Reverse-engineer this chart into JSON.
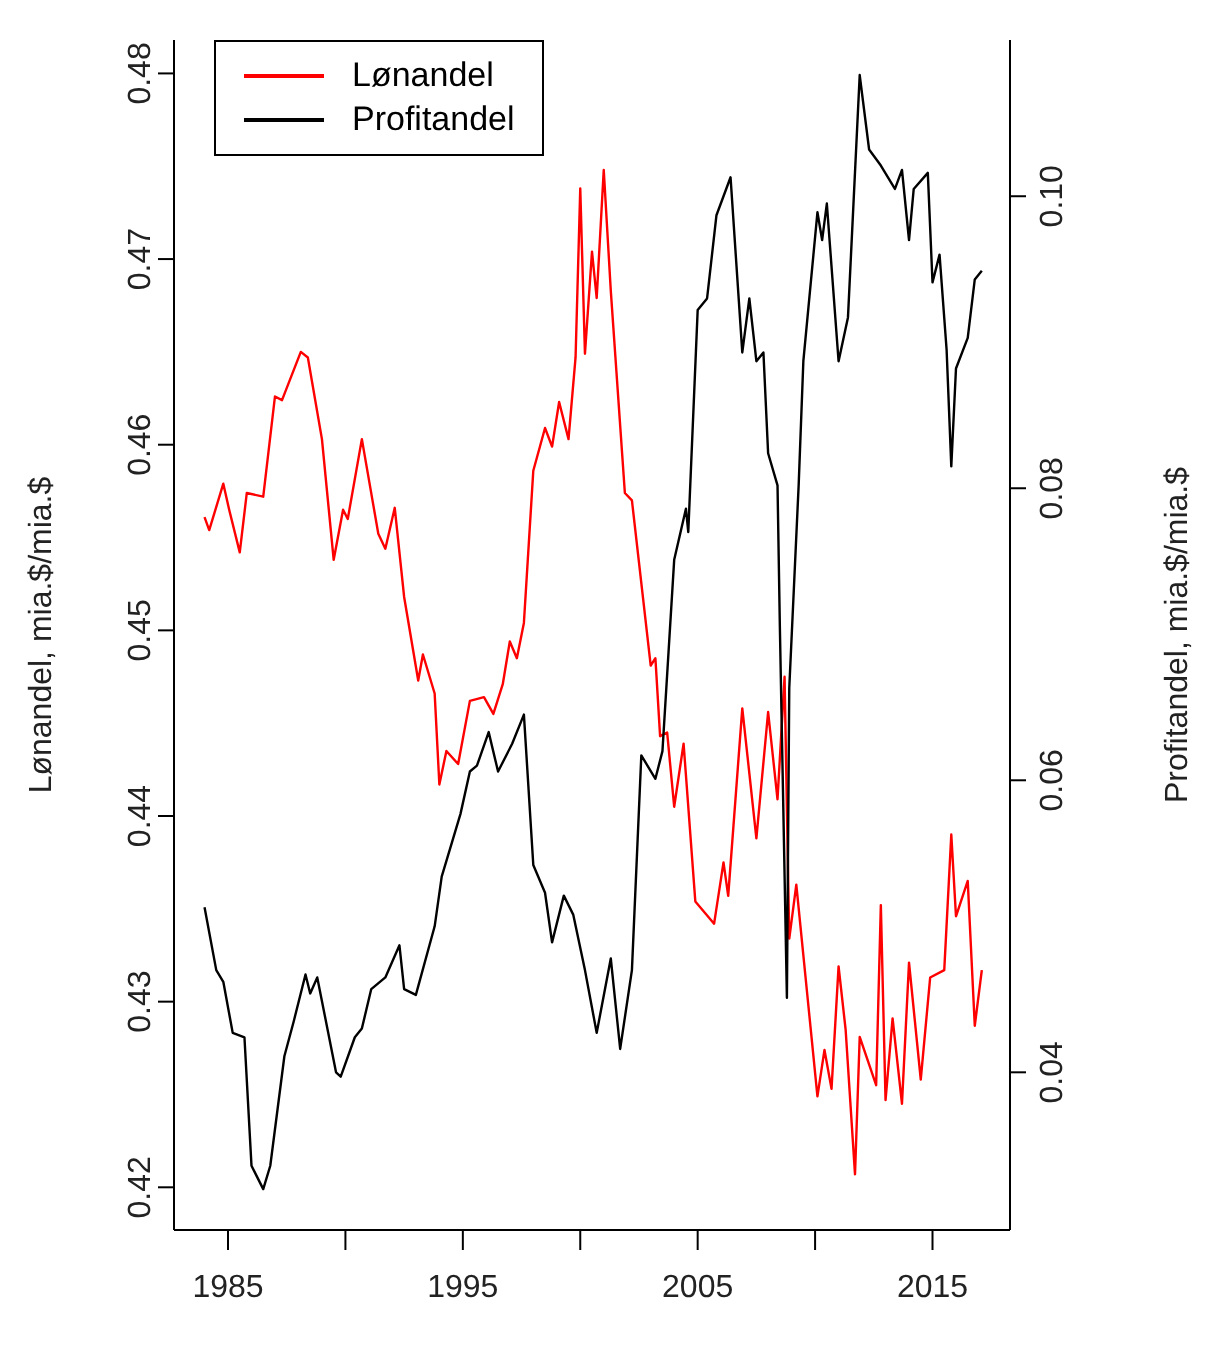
{
  "chart_data": {
    "type": "line",
    "ylabel": "Lønandel, mia.$/mia.$",
    "y2label": "Profitandel, mia.$/mia.$",
    "legend": "top left",
    "xlim": [
      1982.7,
      2018.3
    ],
    "xticks": [
      1985,
      {
        "value": 1990,
        "label": null
      },
      1995,
      {
        "value": 2000,
        "label": null
      },
      2005,
      {
        "value": 2010,
        "label": null
      },
      2015
    ],
    "ylim": [
      0.4177,
      0.4818
    ],
    "yticks": [
      0.42,
      0.43,
      0.44,
      0.45,
      0.46,
      0.47,
      0.48
    ],
    "y2lim": [
      0.0292,
      0.1107
    ],
    "y2ticks": [
      0.04,
      0.06,
      0.08,
      {
        "value": 0.1,
        "label": "0.10"
      }
    ],
    "series": [
      {
        "name": "Lønandel",
        "color": "#ff0000",
        "x": [
          1984.0,
          1984.2,
          1984.8,
          1985.05,
          1985.5,
          1985.8,
          1986.5,
          1987.0,
          1987.3,
          1988.1,
          1988.4,
          1989.0,
          1989.5,
          1989.9,
          1990.1,
          1990.7,
          1991.4,
          1991.7,
          1992.1,
          1992.5,
          1993.1,
          1993.3,
          1993.8,
          1994.0,
          1994.3,
          1994.8,
          1995.3,
          1995.9,
          1996.3,
          1996.7,
          1997.0,
          1997.3,
          1997.6,
          1998.0,
          1998.5,
          1998.8,
          1999.1,
          1999.5,
          1999.8,
          2000.0,
          2000.2,
          2000.5,
          2000.7,
          2001.0,
          2001.3,
          2001.9,
          2002.2,
          2003.0,
          2003.2,
          2003.4,
          2003.7,
          2004.0,
          2004.4,
          2004.9,
          2005.7,
          2006.1,
          2006.3,
          2006.9,
          2007.5,
          2008.0,
          2008.4,
          2008.7,
          2008.9,
          2009.2,
          2010.1,
          2010.4,
          2010.7,
          2011.0,
          2011.3,
          2011.7,
          2011.9,
          2012.6,
          2012.8,
          2013.0,
          2013.3,
          2013.7,
          2014.0,
          2014.5,
          2014.9,
          2015.5,
          2015.8,
          2016.0,
          2016.5,
          2016.8,
          2017.1
        ],
        "values": [
          0.4561,
          0.4554,
          0.4579,
          0.4565,
          0.4542,
          0.4574,
          0.4572,
          0.4626,
          0.4624,
          0.465,
          0.4647,
          0.4603,
          0.4538,
          0.4565,
          0.456,
          0.4603,
          0.4552,
          0.4544,
          0.4566,
          0.4518,
          0.4473,
          0.4487,
          0.4466,
          0.4417,
          0.4435,
          0.4428,
          0.4462,
          0.4464,
          0.4455,
          0.4471,
          0.4494,
          0.4485,
          0.4504,
          0.4586,
          0.4609,
          0.4599,
          0.4623,
          0.4603,
          0.4647,
          0.4738,
          0.4649,
          0.4704,
          0.4679,
          0.4748,
          0.4683,
          0.4574,
          0.457,
          0.4481,
          0.4485,
          0.4443,
          0.4445,
          0.4405,
          0.4439,
          0.4354,
          0.4342,
          0.4375,
          0.4357,
          0.4458,
          0.4388,
          0.4456,
          0.4409,
          0.4475,
          0.4334,
          0.4363,
          0.4249,
          0.4274,
          0.4253,
          0.4319,
          0.4285,
          0.4207,
          0.4281,
          0.4255,
          0.4352,
          0.4247,
          0.4291,
          0.4245,
          0.4321,
          0.4258,
          0.4313,
          0.4317,
          0.439,
          0.4346,
          0.4365,
          0.4287,
          0.4317
        ]
      },
      {
        "name": "Profitandel",
        "color": "#000000",
        "axis": "y2",
        "x": [
          1984.0,
          1984.5,
          1984.8,
          1985.2,
          1985.7,
          1986.0,
          1986.5,
          1986.8,
          1987.4,
          1987.8,
          1988.3,
          1988.5,
          1988.8,
          1989.6,
          1989.8,
          1990.4,
          1990.7,
          1991.1,
          1991.7,
          1992.3,
          1992.5,
          1993.0,
          1993.8,
          1994.1,
          1994.9,
          1995.3,
          1995.6,
          1996.1,
          1996.5,
          1997.1,
          1997.6,
          1998.0,
          1998.5,
          1998.8,
          1999.3,
          1999.7,
          2000.2,
          2000.7,
          2001.3,
          2001.7,
          2002.2,
          2002.6,
          2003.2,
          2003.5,
          2004.0,
          2004.5,
          2004.6,
          2005.0,
          2005.4,
          2005.8,
          2006.4,
          2006.9,
          2007.2,
          2007.5,
          2007.8,
          2008.0,
          2008.4,
          2008.5,
          2008.8,
          2008.9,
          2009.3,
          2009.5,
          2010.1,
          2010.3,
          2010.5,
          2011.0,
          2011.4,
          2011.9,
          2012.3,
          2012.8,
          2013.4,
          2013.7,
          2014.0,
          2014.2,
          2014.8,
          2015.0,
          2015.3,
          2015.6,
          2015.8,
          2016.0,
          2016.5,
          2016.8,
          2017.1
        ],
        "values": [
          0.0513,
          0.047,
          0.0462,
          0.0427,
          0.0424,
          0.0336,
          0.032,
          0.0336,
          0.0411,
          0.0435,
          0.0467,
          0.0454,
          0.0465,
          0.04,
          0.0397,
          0.0424,
          0.043,
          0.0457,
          0.0465,
          0.0487,
          0.0457,
          0.0453,
          0.05,
          0.0534,
          0.0577,
          0.0606,
          0.061,
          0.0633,
          0.0606,
          0.0625,
          0.0645,
          0.0542,
          0.0523,
          0.0489,
          0.0521,
          0.0508,
          0.047,
          0.0427,
          0.0478,
          0.0416,
          0.047,
          0.0617,
          0.0601,
          0.062,
          0.0751,
          0.0786,
          0.077,
          0.0922,
          0.093,
          0.0987,
          0.1013,
          0.0893,
          0.093,
          0.0887,
          0.0893,
          0.0824,
          0.0802,
          0.0705,
          0.0451,
          0.0663,
          0.0802,
          0.0887,
          0.0989,
          0.097,
          0.0995,
          0.0887,
          0.0917,
          0.1083,
          0.1032,
          0.1021,
          0.1005,
          0.1018,
          0.097,
          0.1005,
          0.1016,
          0.0941,
          0.096,
          0.0895,
          0.0815,
          0.0882,
          0.0903,
          0.0943,
          0.0949
        ]
      }
    ]
  }
}
